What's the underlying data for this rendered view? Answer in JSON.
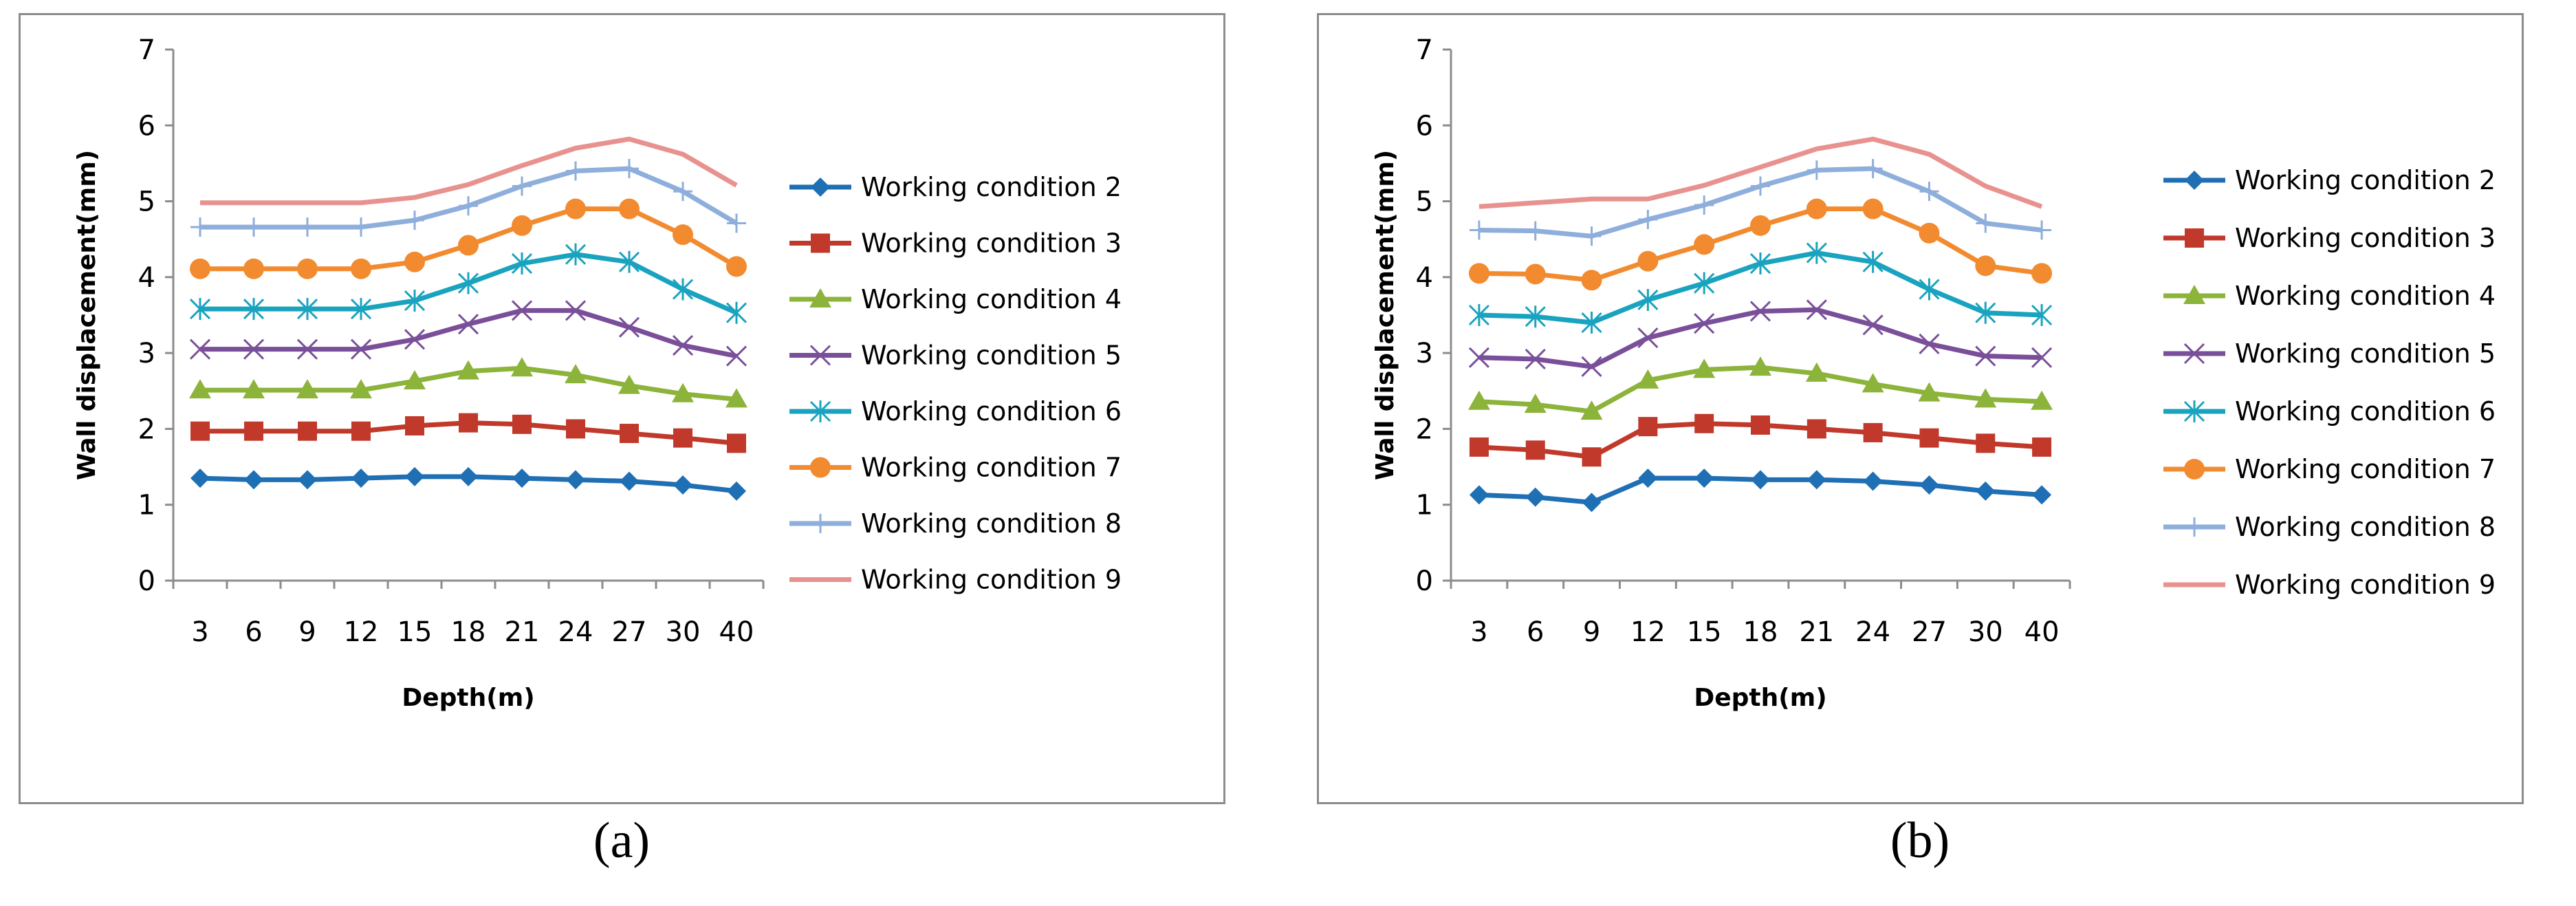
{
  "chart_data": [
    {
      "type": "line",
      "panel": "a",
      "xlabel": "Depth(m)",
      "ylabel": "Wall displacement(mm)",
      "ylim": [
        0,
        7
      ],
      "yticks": [
        0,
        1,
        2,
        3,
        4,
        5,
        6,
        7
      ],
      "categories": [
        "3",
        "6",
        "9",
        "12",
        "15",
        "18",
        "21",
        "24",
        "27",
        "30",
        "40"
      ],
      "legend_position": "right",
      "grid": false,
      "series": [
        {
          "name": "Working condition 2",
          "color": "#1F6FB4",
          "marker": "diamond",
          "values": [
            1.35,
            1.33,
            1.33,
            1.35,
            1.37,
            1.37,
            1.35,
            1.33,
            1.31,
            1.26,
            1.18
          ]
        },
        {
          "name": "Working condition 3",
          "color": "#C0392B",
          "marker": "square",
          "values": [
            1.97,
            1.97,
            1.97,
            1.97,
            2.04,
            2.08,
            2.06,
            2.0,
            1.94,
            1.88,
            1.81
          ]
        },
        {
          "name": "Working condition 4",
          "color": "#8CB33A",
          "marker": "triangle",
          "values": [
            2.51,
            2.51,
            2.51,
            2.51,
            2.63,
            2.76,
            2.8,
            2.71,
            2.57,
            2.46,
            2.39
          ]
        },
        {
          "name": "Working condition 5",
          "color": "#7A4F9A",
          "marker": "x",
          "values": [
            3.05,
            3.05,
            3.05,
            3.05,
            3.18,
            3.38,
            3.56,
            3.56,
            3.34,
            3.1,
            2.96
          ]
        },
        {
          "name": "Working condition 6",
          "color": "#1AA3BF",
          "marker": "asterisk",
          "values": [
            3.58,
            3.58,
            3.58,
            3.58,
            3.69,
            3.92,
            4.18,
            4.3,
            4.2,
            3.84,
            3.53
          ]
        },
        {
          "name": "Working condition 7",
          "color": "#F28B30",
          "marker": "circle",
          "values": [
            4.11,
            4.11,
            4.11,
            4.11,
            4.2,
            4.42,
            4.68,
            4.9,
            4.9,
            4.56,
            4.14
          ]
        },
        {
          "name": "Working condition 8",
          "color": "#8EAEDB",
          "marker": "plus",
          "values": [
            4.66,
            4.66,
            4.66,
            4.66,
            4.75,
            4.94,
            5.2,
            5.4,
            5.43,
            5.13,
            4.71
          ]
        },
        {
          "name": "Working condition 9",
          "color": "#E8928F",
          "marker": "none",
          "values": [
            4.98,
            4.98,
            4.98,
            4.98,
            5.05,
            5.22,
            5.47,
            5.7,
            5.82,
            5.62,
            5.21
          ]
        }
      ]
    },
    {
      "type": "line",
      "panel": "b",
      "xlabel": "Depth(m)",
      "ylabel": "Wall displacement(mm)",
      "ylim": [
        0,
        7
      ],
      "yticks": [
        0,
        1,
        2,
        3,
        4,
        5,
        6,
        7
      ],
      "categories": [
        "3",
        "6",
        "9",
        "12",
        "15",
        "18",
        "21",
        "24",
        "27",
        "30",
        "40"
      ],
      "legend_position": "right",
      "grid": false,
      "series": [
        {
          "name": "Working condition 2",
          "color": "#1F6FB4",
          "marker": "diamond",
          "values": [
            1.13,
            1.1,
            1.03,
            1.35,
            1.35,
            1.33,
            1.33,
            1.31,
            1.26,
            1.18,
            1.13
          ]
        },
        {
          "name": "Working condition 3",
          "color": "#C0392B",
          "marker": "square",
          "values": [
            1.76,
            1.72,
            1.63,
            2.03,
            2.07,
            2.05,
            2.0,
            1.95,
            1.88,
            1.81,
            1.76
          ]
        },
        {
          "name": "Working condition 4",
          "color": "#8CB33A",
          "marker": "triangle",
          "values": [
            2.36,
            2.32,
            2.23,
            2.64,
            2.78,
            2.81,
            2.73,
            2.59,
            2.47,
            2.39,
            2.36
          ]
        },
        {
          "name": "Working condition 5",
          "color": "#7A4F9A",
          "marker": "x",
          "values": [
            2.94,
            2.92,
            2.82,
            3.2,
            3.39,
            3.55,
            3.57,
            3.37,
            3.12,
            2.96,
            2.94
          ]
        },
        {
          "name": "Working condition 6",
          "color": "#1AA3BF",
          "marker": "asterisk",
          "values": [
            3.5,
            3.48,
            3.4,
            3.7,
            3.92,
            4.18,
            4.32,
            4.2,
            3.84,
            3.53,
            3.5
          ]
        },
        {
          "name": "Working condition 7",
          "color": "#F28B30",
          "marker": "circle",
          "values": [
            4.05,
            4.04,
            3.96,
            4.21,
            4.43,
            4.68,
            4.9,
            4.9,
            4.58,
            4.15,
            4.05
          ]
        },
        {
          "name": "Working condition 8",
          "color": "#8EAEDB",
          "marker": "plus",
          "values": [
            4.62,
            4.61,
            4.54,
            4.76,
            4.95,
            5.2,
            5.41,
            5.43,
            5.13,
            4.71,
            4.62
          ]
        },
        {
          "name": "Working condition 9",
          "color": "#E8928F",
          "marker": "none",
          "values": [
            4.93,
            4.98,
            5.03,
            5.03,
            5.21,
            5.45,
            5.69,
            5.82,
            5.62,
            5.2,
            4.93
          ]
        }
      ]
    }
  ],
  "captions": {
    "a": "(a)",
    "b": "(b)"
  }
}
